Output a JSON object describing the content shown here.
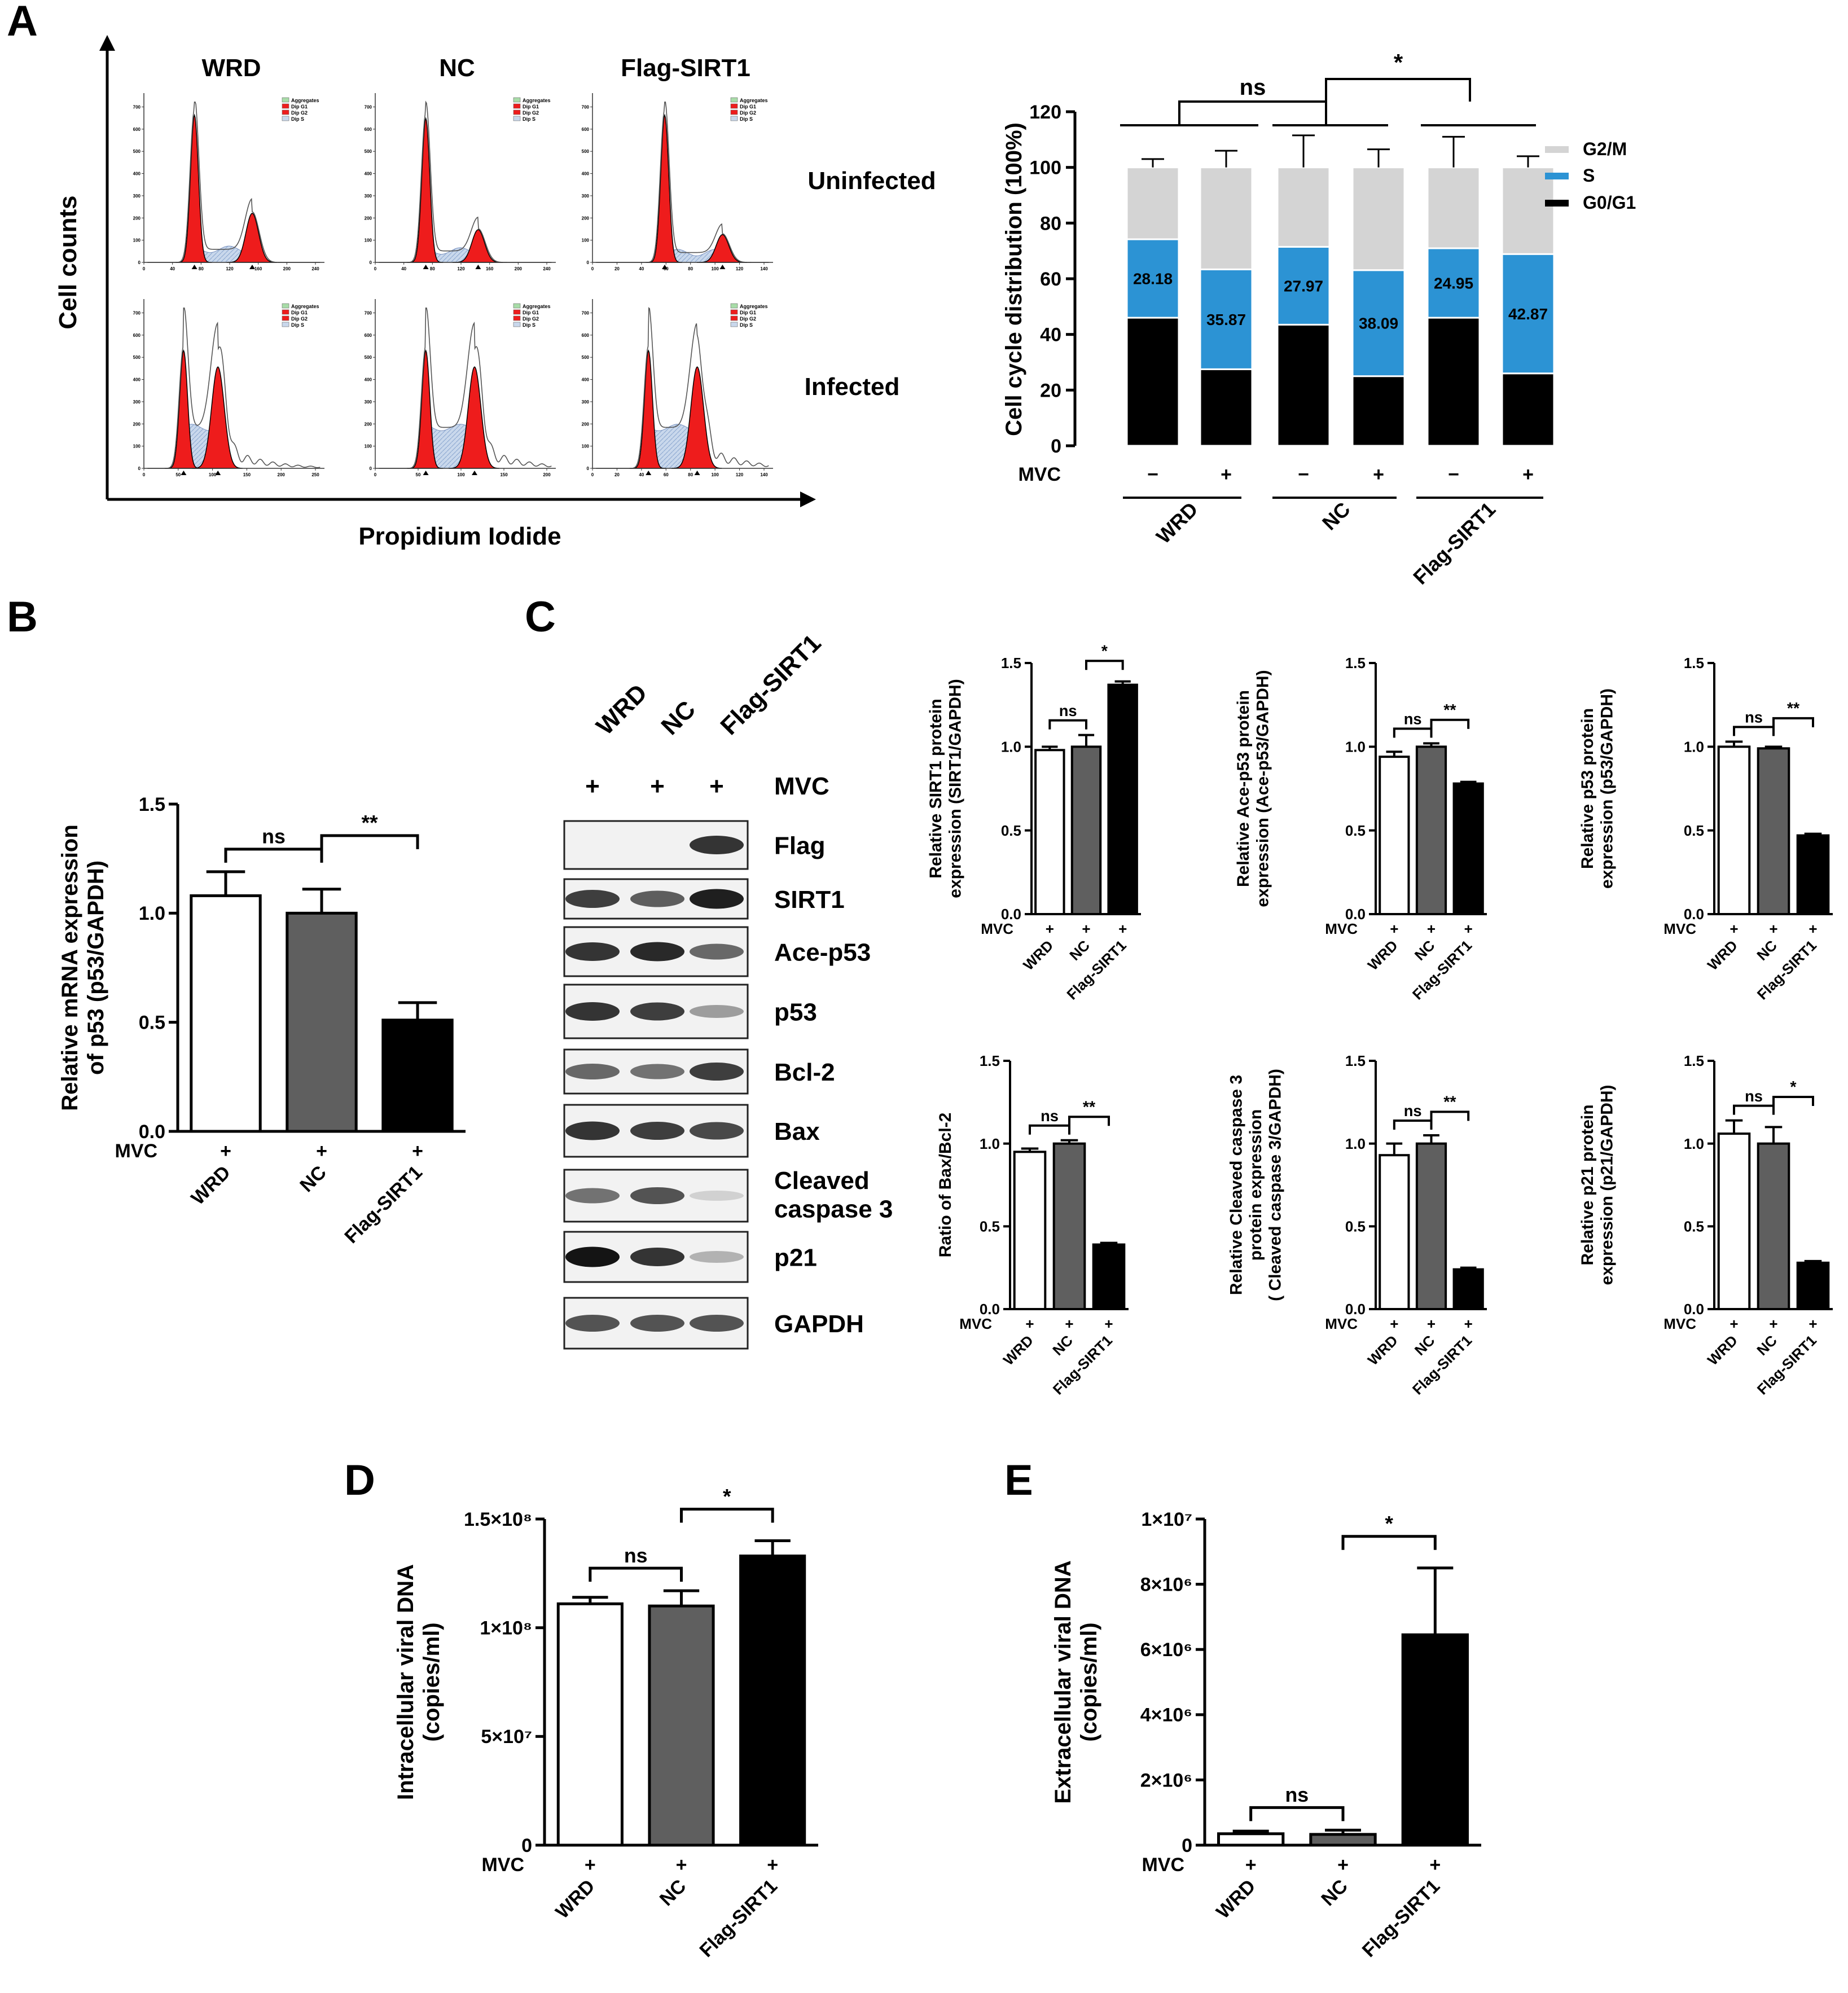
{
  "panels": {
    "a": "A",
    "b": "B",
    "c": "C",
    "d": "D",
    "e": "E"
  },
  "colors": {
    "wrd": "#ffffff",
    "nc": "#5f5f5f",
    "flag": "#000000",
    "g2m": "#d4d4d4",
    "s": "#2c93d4",
    "g0g1": "#000000",
    "peak": "#ee1c1c",
    "s_fill": "#c9d8ec"
  },
  "flow": {
    "col_labels": [
      "WRD",
      "NC",
      "Flag-SIRT1"
    ],
    "row_labels": [
      "Uninfected",
      "Infected"
    ],
    "ylabel": "Cell counts",
    "xlabel": "Propidium Iodide",
    "legend": [
      "Aggregates",
      "Dip G1",
      "Dip G2",
      "Dip S"
    ],
    "xticks": [
      [
        "0",
        "40",
        "80",
        "120",
        "160",
        "200",
        "240"
      ],
      [
        "0",
        "40",
        "80",
        "120",
        "160",
        "200",
        "240"
      ],
      [
        "0",
        "20",
        "40",
        "60",
        "80",
        "100",
        "120",
        "140"
      ]
    ],
    "xticks_infected": [
      [
        "0",
        "50",
        "100",
        "150",
        "200",
        "250"
      ],
      [
        "0",
        "50",
        "100",
        "150",
        "200"
      ],
      [
        "0",
        "20",
        "40",
        "60",
        "80",
        "100",
        "120",
        "140"
      ]
    ],
    "yticks": [
      [
        "0",
        "100",
        "200",
        "300",
        "400",
        "500",
        "600",
        "700"
      ],
      [
        "0",
        "100",
        "200",
        "300",
        "400",
        "500",
        "600",
        "700"
      ],
      [
        "0",
        "100",
        "200",
        "300",
        "400",
        "500",
        "600",
        "700"
      ]
    ]
  },
  "chart_data": [
    {
      "id": "A-right",
      "type": "bar",
      "stacked": true,
      "ylabel": "Cell cycle distribution (100%)",
      "ylim": [
        0,
        120
      ],
      "yticks": [
        "0",
        "20",
        "40",
        "60",
        "80",
        "100",
        "120"
      ],
      "treatment_label": "MVC",
      "treatment": [
        "−",
        "+",
        "−",
        "+",
        "−",
        "+"
      ],
      "groups": [
        "WRD",
        "NC",
        "Flag-SIRT1"
      ],
      "series": [
        {
          "name": "G0/G1",
          "values": [
            46,
            27.5,
            43.5,
            25,
            46,
            26
          ],
          "errors": [
            5,
            8.5,
            12,
            3.5,
            12.5,
            2
          ]
        },
        {
          "name": "S",
          "values": [
            28.18,
            35.87,
            27.97,
            38.09,
            24.95,
            42.87
          ],
          "errors": [
            3.5,
            5,
            2,
            4.5,
            4.5,
            2
          ]
        },
        {
          "name": "G2/M",
          "values": [
            25.82,
            36.63,
            28.53,
            36.91,
            29.05,
            31.13
          ],
          "errors": [
            3,
            6,
            11.5,
            6.5,
            11,
            4
          ]
        }
      ],
      "value_labels": [
        "28.18",
        "35.87",
        "27.97",
        "38.09",
        "24.95",
        "42.87"
      ],
      "annotations": [
        "ns",
        "*"
      ],
      "legend": [
        "G2/M",
        "S",
        "G0/G1"
      ]
    },
    {
      "id": "B",
      "type": "bar",
      "ylabel": "Relative mRNA expression\nof p53 (p53/GAPDH)",
      "ylim": [
        0,
        1.5
      ],
      "yticks": [
        "0.0",
        "0.5",
        "1.0",
        "1.5"
      ],
      "treatment_label": "MVC",
      "categories": [
        "WRD",
        "NC",
        "Flag-SIRT1"
      ],
      "values": [
        1.08,
        1.0,
        0.51
      ],
      "errors": [
        0.11,
        0.11,
        0.08
      ],
      "annotations": [
        "ns",
        "**"
      ]
    },
    {
      "id": "C1",
      "type": "bar",
      "ylabel": "Relative SIRT1 protein\nexpression (SIRT1/GAPDH)",
      "ylim": [
        0,
        1.5
      ],
      "yticks": [
        "0.0",
        "0.5",
        "1.0",
        "1.5"
      ],
      "treatment_label": "MVC",
      "categories": [
        "WRD",
        "NC",
        "Flag-SIRT1"
      ],
      "values": [
        0.98,
        1.0,
        1.37
      ],
      "errors": [
        0.02,
        0.07,
        0.02
      ],
      "annotations": [
        "ns",
        "*"
      ]
    },
    {
      "id": "C2",
      "type": "bar",
      "ylabel": "Relative Ace-p53 protein\nexpression (Ace-p53/GAPDH)",
      "ylim": [
        0,
        1.5
      ],
      "yticks": [
        "0.0",
        "0.5",
        "1.0",
        "1.5"
      ],
      "treatment_label": "MVC",
      "categories": [
        "WRD",
        "NC",
        "Flag-SIRT1"
      ],
      "values": [
        0.94,
        1.0,
        0.78
      ],
      "errors": [
        0.03,
        0.02,
        0.01
      ],
      "annotations": [
        "ns",
        "**"
      ]
    },
    {
      "id": "C3",
      "type": "bar",
      "ylabel": "Relative p53 protein\nexpression (p53/GAPDH)",
      "ylim": [
        0,
        1.5
      ],
      "yticks": [
        "0.0",
        "0.5",
        "1.0",
        "1.5"
      ],
      "treatment_label": "MVC",
      "categories": [
        "WRD",
        "NC",
        "Flag-SIRT1"
      ],
      "values": [
        1.0,
        0.99,
        0.47
      ],
      "errors": [
        0.03,
        0.01,
        0.01
      ],
      "annotations": [
        "ns",
        "**"
      ]
    },
    {
      "id": "C4",
      "type": "bar",
      "ylabel": "Ratio of Bax/Bcl-2",
      "ylim": [
        0,
        1.5
      ],
      "yticks": [
        "0.0",
        "0.5",
        "1.0",
        "1.5"
      ],
      "treatment_label": "MVC",
      "categories": [
        "WRD",
        "NC",
        "Flag-SIRT1"
      ],
      "values": [
        0.95,
        1.0,
        0.39
      ],
      "errors": [
        0.02,
        0.02,
        0.01
      ],
      "annotations": [
        "ns",
        "**"
      ]
    },
    {
      "id": "C5",
      "type": "bar",
      "ylabel": "Relative Cleaved caspase 3\nprotein expression\n( Cleaved caspase 3/GAPDH)",
      "ylim": [
        0,
        1.5
      ],
      "yticks": [
        "0.0",
        "0.5",
        "1.0",
        "1.5"
      ],
      "treatment_label": "MVC",
      "categories": [
        "WRD",
        "NC",
        "Flag-SIRT1"
      ],
      "values": [
        0.93,
        1.0,
        0.24
      ],
      "errors": [
        0.07,
        0.05,
        0.01
      ],
      "annotations": [
        "ns",
        "**"
      ]
    },
    {
      "id": "C6",
      "type": "bar",
      "ylabel": "Relative p21 protein\nexpression (p21/GAPDH)",
      "ylim": [
        0,
        1.5
      ],
      "yticks": [
        "0.0",
        "0.5",
        "1.0",
        "1.5"
      ],
      "treatment_label": "MVC",
      "categories": [
        "WRD",
        "NC",
        "Flag-SIRT1"
      ],
      "values": [
        1.06,
        1.0,
        0.28
      ],
      "errors": [
        0.08,
        0.1,
        0.01
      ],
      "annotations": [
        "ns",
        "*"
      ]
    },
    {
      "id": "D",
      "type": "bar",
      "ylabel": "Intracellular viral DNA\n(copies/ml)",
      "ylim": [
        0,
        150000000
      ],
      "yticks": [
        "0",
        "5×10⁷",
        "1×10⁸",
        "1.5×10⁸"
      ],
      "treatment_label": "MVC",
      "categories": [
        "WRD",
        "NC",
        "Flag-SIRT1"
      ],
      "values": [
        111000000,
        110000000,
        133000000
      ],
      "errors": [
        3000000,
        7000000,
        7000000
      ],
      "annotations": [
        "ns",
        "*"
      ]
    },
    {
      "id": "E",
      "type": "bar",
      "ylabel": "Extracellular viral DNA\n(copies/ml)",
      "ylim": [
        0,
        10000000
      ],
      "yticks": [
        "0",
        "2×10⁶",
        "4×10⁶",
        "6×10⁶",
        "8×10⁶",
        "1×10⁷"
      ],
      "treatment_label": "MVC",
      "categories": [
        "WRD",
        "NC",
        "Flag-SIRT1"
      ],
      "values": [
        350000,
        330000,
        6450000
      ],
      "errors": [
        80000,
        130000,
        2050000
      ],
      "annotations": [
        "ns",
        "*"
      ]
    }
  ],
  "western": {
    "lanes": [
      "WRD",
      "NC",
      "Flag-SIRT1"
    ],
    "treatment": [
      "+",
      "+",
      "+"
    ],
    "treatment_label": "MVC",
    "bands": [
      "Flag",
      "SIRT1",
      "Ace-p53",
      "p53",
      "Bcl-2",
      "Bax",
      "Cleaved\ncaspase 3",
      "p21",
      "GAPDH"
    ],
    "intensity": [
      [
        0.0,
        0.0,
        0.85
      ],
      [
        0.8,
        0.65,
        0.95
      ],
      [
        0.85,
        0.9,
        0.6
      ],
      [
        0.85,
        0.8,
        0.35
      ],
      [
        0.6,
        0.55,
        0.8
      ],
      [
        0.85,
        0.8,
        0.75
      ],
      [
        0.55,
        0.7,
        0.1
      ],
      [
        1.0,
        0.85,
        0.25
      ],
      [
        0.7,
        0.7,
        0.7
      ]
    ]
  }
}
